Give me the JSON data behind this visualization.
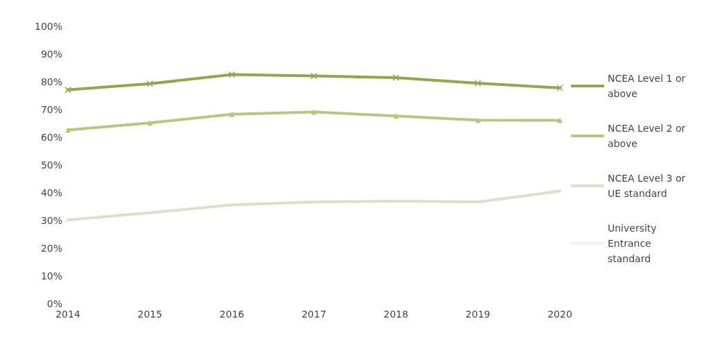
{
  "chart_data": {
    "type": "line",
    "categories": [
      "2014",
      "2015",
      "2016",
      "2017",
      "2018",
      "2019",
      "2020"
    ],
    "series": [
      {
        "name": "NCEA Level 1 or above",
        "color": "#8fa84a",
        "marker": "cross",
        "values": [
          77.1,
          79.3,
          82.6,
          82.1,
          81.5,
          79.5,
          77.8
        ]
      },
      {
        "name": "NCEA Level 2 or above",
        "color": "#b7c87e",
        "marker": "triangle",
        "values": [
          62.6,
          65.2,
          68.3,
          69.1,
          67.7,
          66.2,
          66.1
        ]
      },
      {
        "name": "NCEA Level 3 or UE standard",
        "color": "#dcdfc9",
        "marker": "none",
        "values": [
          30.2,
          32.8,
          35.6,
          36.7,
          37.0,
          36.7,
          40.6
        ]
      },
      {
        "name": "University Entrance standard",
        "color": "#f2f2ee",
        "marker": "none",
        "values": [
          null,
          null,
          null,
          null,
          null,
          null,
          null
        ]
      }
    ],
    "ylim": [
      0,
      100
    ],
    "yticks": [
      {
        "value": 0,
        "label": "0%"
      },
      {
        "value": 10,
        "label": "10%"
      },
      {
        "value": 20,
        "label": "20%"
      },
      {
        "value": 30,
        "label": "30%"
      },
      {
        "value": 40,
        "label": "40%"
      },
      {
        "value": 50,
        "label": "50%"
      },
      {
        "value": 60,
        "label": "60%"
      },
      {
        "value": 70,
        "label": "70%"
      },
      {
        "value": 80,
        "label": "80%"
      },
      {
        "value": 90,
        "label": "90%"
      },
      {
        "value": 100,
        "label": "100%"
      }
    ],
    "grid": false,
    "legend": "right",
    "line_style": "solid"
  }
}
